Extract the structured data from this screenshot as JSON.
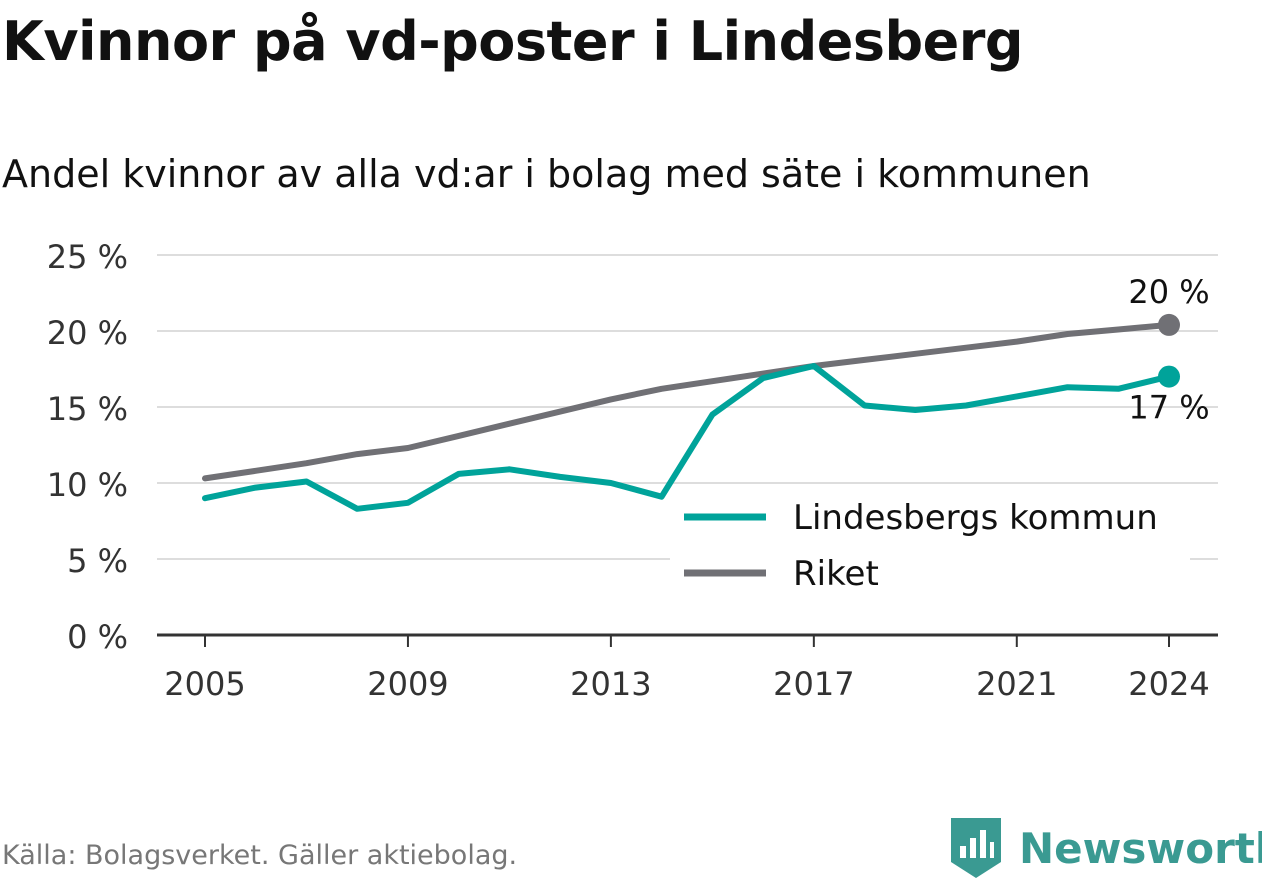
{
  "chart_data": {
    "type": "line",
    "title": "Kvinnor på vd-poster i Lindesberg",
    "subtitle": "Andel kvinnor av alla vd:ar i bolag med säte i kommunen",
    "x": [
      2005,
      2006,
      2007,
      2008,
      2009,
      2010,
      2011,
      2012,
      2013,
      2014,
      2015,
      2016,
      2017,
      2018,
      2019,
      2020,
      2021,
      2022,
      2023,
      2024
    ],
    "series": [
      {
        "name": "Lindesbergs kommun",
        "color": "#00a39a",
        "values": [
          9.0,
          9.7,
          10.1,
          8.3,
          8.7,
          10.6,
          10.9,
          10.4,
          10.0,
          9.1,
          14.5,
          16.9,
          17.7,
          15.1,
          14.8,
          15.1,
          15.7,
          16.3,
          16.2,
          17.0
        ],
        "end_label": "17 %"
      },
      {
        "name": "Riket",
        "color": "#707075",
        "values": [
          10.3,
          10.8,
          11.3,
          11.9,
          12.3,
          13.1,
          13.9,
          14.7,
          15.5,
          16.2,
          16.7,
          17.2,
          17.7,
          18.1,
          18.5,
          18.9,
          19.3,
          19.8,
          20.1,
          20.4
        ],
        "end_label": "20 %"
      }
    ],
    "y_ticks": [
      "0 %",
      "5 %",
      "10 %",
      "15 %",
      "20 %",
      "25 %"
    ],
    "y_tick_values": [
      0,
      5,
      10,
      15,
      20,
      25
    ],
    "x_ticks": [
      "2005",
      "2009",
      "2013",
      "2017",
      "2021",
      "2024"
    ],
    "x_tick_values": [
      2005,
      2009,
      2013,
      2017,
      2021,
      2024
    ],
    "xlim": [
      2004.5,
      2024.5
    ],
    "ylim": [
      0,
      25
    ],
    "grid": true,
    "legend": "bottom-right"
  },
  "source": "Källa: Bolagsverket. Gäller aktiebolag.",
  "brand": "Newsworthy",
  "logo_icon": "bar-chart-shield-icon"
}
